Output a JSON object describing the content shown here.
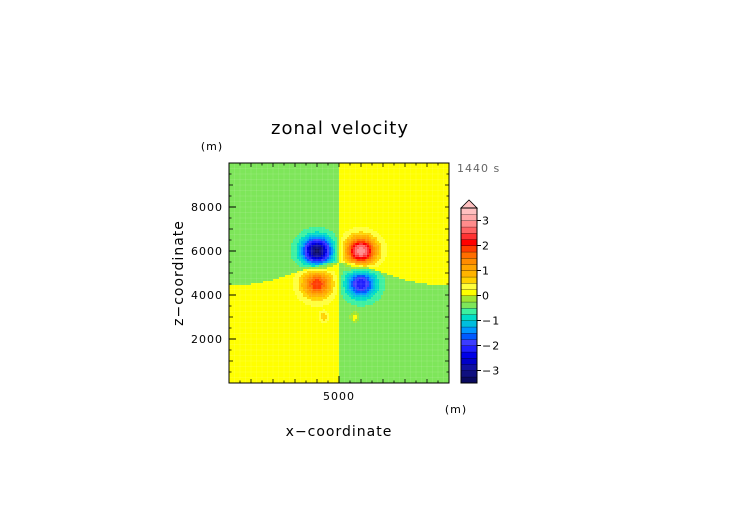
{
  "chart_data": {
    "type": "heatmap",
    "title": "zonal velocity",
    "time_label": "1440 s",
    "xlabel": "x−coordinate",
    "ylabel": "z−coordinate",
    "x_unit": "(m)",
    "y_unit": "(m)",
    "xlim": [
      0,
      10000
    ],
    "ylim": [
      0,
      10000
    ],
    "x_ticks": [
      5000
    ],
    "y_ticks": [
      2000,
      4000,
      6000,
      8000
    ],
    "x_tick_labels": [
      "5000"
    ],
    "y_tick_labels": [
      "2000",
      "4000",
      "6000",
      "8000"
    ],
    "colorbar": {
      "levels": [
        -3.5,
        -3.25,
        -3,
        -2.75,
        -2.5,
        -2.25,
        -2,
        -1.75,
        -1.5,
        -1.25,
        -1,
        -0.75,
        -0.5,
        -0.25,
        0,
        0.25,
        0.5,
        0.75,
        1,
        1.25,
        1.5,
        1.75,
        2,
        2.25,
        2.5,
        2.75,
        3,
        3.25,
        3.5
      ],
      "colors": [
        "#0a0a60",
        "#101080",
        "#1010a0",
        "#0000c8",
        "#0000e6",
        "#1e1eff",
        "#3c3cff",
        "#005aff",
        "#0096ff",
        "#00bede",
        "#00dcc8",
        "#3cf0a0",
        "#7ee65a",
        "#a0e632",
        "#ffff00",
        "#ffff3c",
        "#ffd200",
        "#ffb400",
        "#ffa500",
        "#ff8c00",
        "#ff6e00",
        "#ff3c00",
        "#ff0000",
        "#ff3232",
        "#ff6464",
        "#ff8c8c",
        "#ffaaaa",
        "#ffc0c0"
      ],
      "tick_values": [
        3,
        2,
        1,
        0,
        -1,
        -2,
        -3
      ],
      "tick_labels": [
        "3",
        "2",
        "1",
        "0",
        "−1",
        "−2",
        "−3"
      ],
      "extend": "max"
    },
    "features": [
      {
        "x": 4000,
        "z": 6000,
        "peak": -3.3
      },
      {
        "x": 6000,
        "z": 6000,
        "peak": 3.0
      },
      {
        "x": 4000,
        "z": 4500,
        "peak": 2.0
      },
      {
        "x": 6000,
        "z": 4500,
        "peak": -2.2
      },
      {
        "x": 4300,
        "z": 3000,
        "peak": 0.6
      },
      {
        "x": 5700,
        "z": 3000,
        "peak": 0.6
      }
    ]
  }
}
